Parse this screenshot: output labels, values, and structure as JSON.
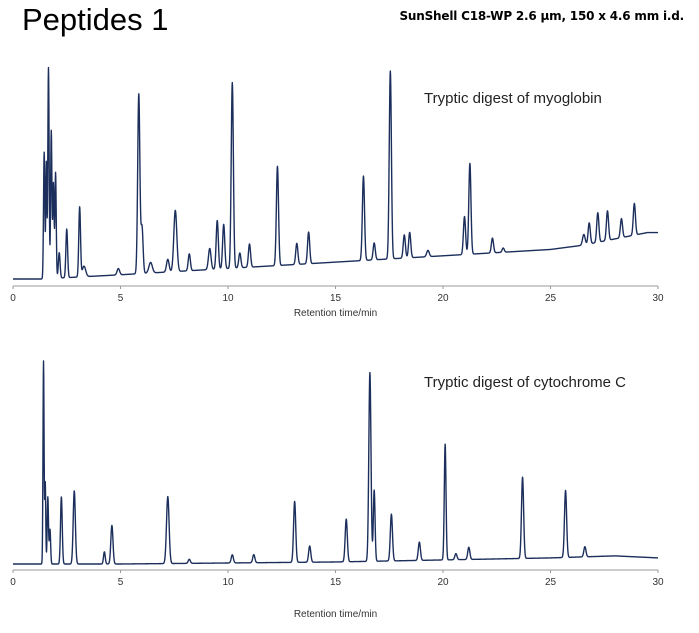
{
  "header": {
    "title": "Peptides 1",
    "column_spec": "SunShell  C18-WP 2.6 μm, 150 x 4.6 mm i.d."
  },
  "colors": {
    "trace": "#1c2f5c",
    "axis": "#999999"
  },
  "chart_data": [
    {
      "type": "line",
      "annotation": "Tryptic digest of myoglobin",
      "xlabel": "Retention time/min",
      "ylabel": "",
      "xlim": [
        0,
        30
      ],
      "xticks": [
        0,
        5,
        10,
        15,
        20,
        25,
        30
      ],
      "grid": false,
      "baseline": [
        [
          0,
          0.0
        ],
        [
          1.3,
          0.0
        ],
        [
          5,
          0.02
        ],
        [
          10,
          0.05
        ],
        [
          15,
          0.08
        ],
        [
          20,
          0.11
        ],
        [
          25,
          0.14
        ],
        [
          26.5,
          0.16
        ],
        [
          29.5,
          0.22
        ],
        [
          30,
          0.22
        ]
      ],
      "peaks": [
        [
          1.45,
          0.6,
          0.03
        ],
        [
          1.55,
          0.55,
          0.025
        ],
        [
          1.65,
          1.0,
          0.03
        ],
        [
          1.78,
          0.7,
          0.03
        ],
        [
          1.88,
          0.45,
          0.03
        ],
        [
          1.98,
          0.5,
          0.03
        ],
        [
          2.15,
          0.12,
          0.04
        ],
        [
          2.5,
          0.23,
          0.04
        ],
        [
          3.1,
          0.33,
          0.04
        ],
        [
          3.3,
          0.05,
          0.08
        ],
        [
          4.9,
          0.03,
          0.06
        ],
        [
          5.85,
          0.85,
          0.05
        ],
        [
          6.0,
          0.22,
          0.05
        ],
        [
          6.4,
          0.05,
          0.08
        ],
        [
          7.2,
          0.06,
          0.06
        ],
        [
          7.55,
          0.29,
          0.07
        ],
        [
          8.2,
          0.08,
          0.05
        ],
        [
          9.15,
          0.1,
          0.06
        ],
        [
          9.5,
          0.23,
          0.05
        ],
        [
          9.8,
          0.21,
          0.05
        ],
        [
          10.2,
          0.88,
          0.05
        ],
        [
          10.55,
          0.07,
          0.05
        ],
        [
          11.0,
          0.11,
          0.05
        ],
        [
          12.3,
          0.47,
          0.05
        ],
        [
          13.2,
          0.1,
          0.05
        ],
        [
          13.75,
          0.15,
          0.05
        ],
        [
          16.3,
          0.4,
          0.05
        ],
        [
          16.8,
          0.08,
          0.05
        ],
        [
          18.2,
          0.11,
          0.05
        ],
        [
          18.45,
          0.12,
          0.05
        ],
        [
          17.55,
          0.89,
          0.05
        ],
        [
          19.3,
          0.03,
          0.06
        ],
        [
          21.0,
          0.18,
          0.05
        ],
        [
          21.25,
          0.43,
          0.05
        ],
        [
          22.3,
          0.07,
          0.05
        ],
        [
          22.8,
          0.02,
          0.05
        ],
        [
          26.55,
          0.05,
          0.06
        ],
        [
          26.8,
          0.1,
          0.05
        ],
        [
          27.2,
          0.14,
          0.05
        ],
        [
          27.65,
          0.14,
          0.05
        ],
        [
          28.3,
          0.09,
          0.05
        ],
        [
          28.9,
          0.15,
          0.05
        ]
      ]
    },
    {
      "type": "line",
      "annotation": "Tryptic digest of cytochrome C",
      "xlabel": "Retention time/min",
      "ylabel": "",
      "xlim": [
        0,
        30
      ],
      "xticks": [
        0,
        5,
        10,
        15,
        20,
        25,
        30
      ],
      "grid": false,
      "baseline": [
        [
          0,
          0.0
        ],
        [
          1.3,
          0.0
        ],
        [
          5,
          0.0
        ],
        [
          10,
          0.005
        ],
        [
          15,
          0.01
        ],
        [
          20,
          0.02
        ],
        [
          25,
          0.03
        ],
        [
          28,
          0.04
        ],
        [
          30,
          0.03
        ]
      ],
      "dip": [
        1.5,
        -0.1,
        0.03
      ],
      "peaks": [
        [
          1.42,
          1.0,
          0.025
        ],
        [
          1.5,
          0.5,
          0.025
        ],
        [
          1.62,
          0.33,
          0.03
        ],
        [
          1.72,
          0.17,
          0.03
        ],
        [
          2.25,
          0.33,
          0.04
        ],
        [
          2.85,
          0.36,
          0.05
        ],
        [
          4.25,
          0.06,
          0.04
        ],
        [
          4.6,
          0.19,
          0.05
        ],
        [
          7.2,
          0.33,
          0.06
        ],
        [
          8.2,
          0.02,
          0.05
        ],
        [
          10.2,
          0.04,
          0.05
        ],
        [
          11.2,
          0.04,
          0.05
        ],
        [
          13.1,
          0.3,
          0.05
        ],
        [
          13.8,
          0.08,
          0.05
        ],
        [
          15.5,
          0.21,
          0.05
        ],
        [
          16.6,
          0.93,
          0.05
        ],
        [
          16.8,
          0.35,
          0.04
        ],
        [
          17.6,
          0.23,
          0.05
        ],
        [
          18.9,
          0.09,
          0.05
        ],
        [
          20.1,
          0.57,
          0.04
        ],
        [
          20.6,
          0.03,
          0.05
        ],
        [
          21.2,
          0.06,
          0.05
        ],
        [
          23.7,
          0.4,
          0.05
        ],
        [
          25.7,
          0.33,
          0.05
        ],
        [
          26.6,
          0.05,
          0.05
        ]
      ]
    }
  ]
}
